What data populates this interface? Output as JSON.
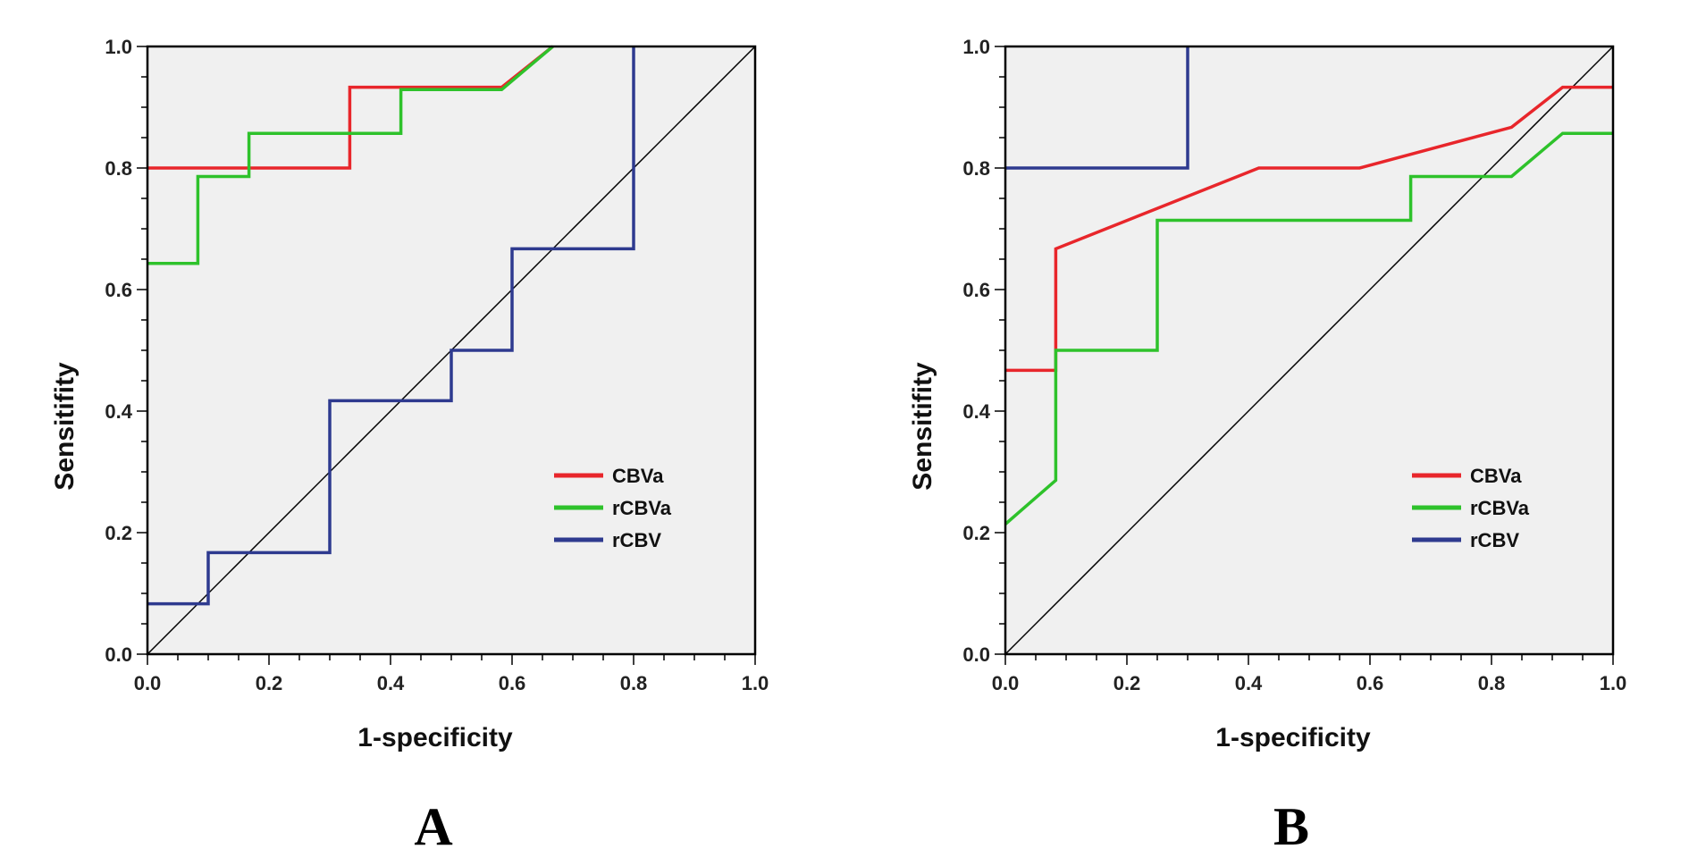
{
  "chart_data": [
    {
      "type": "line",
      "panel_label": "A",
      "xlabel": "1-specificity",
      "ylabel": "Sensitifity",
      "xlim": [
        0,
        1
      ],
      "ylim": [
        0,
        1
      ],
      "xticks": [
        "0.0",
        "0.2",
        "0.4",
        "0.6",
        "0.8",
        "1.0"
      ],
      "yticks": [
        "0.0",
        "0.2",
        "0.4",
        "0.6",
        "0.8",
        "1.0"
      ],
      "diagonal_reference": true,
      "legend_position": "lower-right",
      "series": [
        {
          "name": "CBVa",
          "color": "#e8262b",
          "x": [
            0,
            0.333,
            0.333,
            0.583,
            0.667
          ],
          "y": [
            0.8,
            0.8,
            0.933,
            0.933,
            1.0
          ]
        },
        {
          "name": "rCBVa",
          "color": "#2ec22b",
          "x": [
            0,
            0.083,
            0.083,
            0.167,
            0.167,
            0.417,
            0.417,
            0.583,
            0.667
          ],
          "y": [
            0.643,
            0.643,
            0.786,
            0.786,
            0.857,
            0.857,
            0.929,
            0.929,
            1.0
          ]
        },
        {
          "name": "rCBV",
          "color": "#2e3a8f",
          "x": [
            0,
            0.1,
            0.1,
            0.3,
            0.3,
            0.5,
            0.5,
            0.6,
            0.6,
            0.8,
            0.8
          ],
          "y": [
            0.083,
            0.083,
            0.167,
            0.167,
            0.417,
            0.417,
            0.5,
            0.5,
            0.667,
            0.667,
            1.0
          ]
        }
      ]
    },
    {
      "type": "line",
      "panel_label": "B",
      "xlabel": "1-specificity",
      "ylabel": "Sensitifity",
      "xlim": [
        0,
        1
      ],
      "ylim": [
        0,
        1
      ],
      "xticks": [
        "0.0",
        "0.2",
        "0.4",
        "0.6",
        "0.8",
        "1.0"
      ],
      "yticks": [
        "0.0",
        "0.2",
        "0.4",
        "0.6",
        "0.8",
        "1.0"
      ],
      "diagonal_reference": true,
      "legend_position": "lower-right",
      "series": [
        {
          "name": "CBVa",
          "color": "#e8262b",
          "x": [
            0,
            0.083,
            0.083,
            0.417,
            0.583,
            0.833,
            0.917,
            1.0
          ],
          "y": [
            0.467,
            0.467,
            0.667,
            0.8,
            0.8,
            0.867,
            0.933,
            0.933
          ]
        },
        {
          "name": "rCBVa",
          "color": "#2ec22b",
          "x": [
            0,
            0.083,
            0.083,
            0.25,
            0.25,
            0.667,
            0.667,
            0.833,
            0.917,
            1.0
          ],
          "y": [
            0.214,
            0.286,
            0.5,
            0.5,
            0.714,
            0.714,
            0.786,
            0.786,
            0.857,
            0.857
          ]
        },
        {
          "name": "rCBV",
          "color": "#2e3a8f",
          "x": [
            0,
            0.3,
            0.3
          ],
          "y": [
            0.8,
            0.8,
            1.0
          ]
        }
      ]
    }
  ]
}
